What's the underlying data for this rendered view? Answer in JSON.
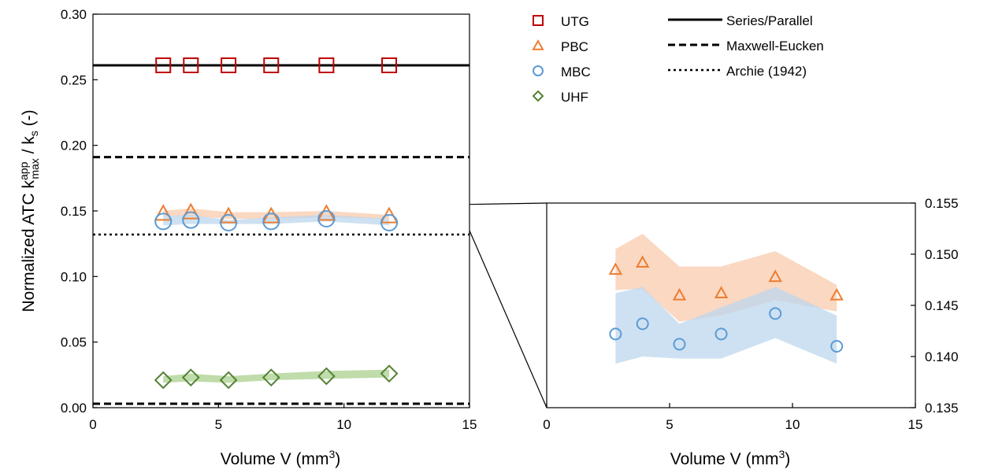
{
  "colors": {
    "UTG": "#c00000",
    "PBC": "#ed7d31",
    "MBC": "#5b9bd5",
    "UHF": "#548235",
    "PBC_band": "#f8cbad",
    "MBC_band": "#bdd7ee",
    "UHF_band": "#a9d08e"
  },
  "chart_data": [
    {
      "type": "scatter",
      "xlabel": "Volume V (mm",
      "xlabel_sup": "3",
      "xlabel_end": ")",
      "ylabel_main": "Normalized ATC k",
      "ylabel_sup": "app",
      "ylabel_sub": "max",
      "ylabel_mid": " / k",
      "ylabel_sub2": "s",
      "ylabel_end": "  (-)",
      "xlim": [
        0,
        15
      ],
      "ylim": [
        0,
        0.3
      ],
      "xticks": [
        "0",
        "5",
        "10",
        "15"
      ],
      "yticks": [
        "0.00",
        "0.05",
        "0.10",
        "0.15",
        "0.20",
        "0.25",
        "0.30"
      ],
      "x": [
        2.8,
        3.9,
        5.4,
        7.1,
        9.3,
        11.8
      ],
      "series": [
        {
          "name": "UTG",
          "marker": "square",
          "values": [
            0.261,
            0.261,
            0.261,
            0.261,
            0.261,
            0.261
          ]
        },
        {
          "name": "PBC",
          "marker": "triangle",
          "values": [
            0.148,
            0.149,
            0.146,
            0.146,
            0.148,
            0.146
          ],
          "band_upper": [
            0.15,
            0.152,
            0.149,
            0.149,
            0.15,
            0.147
          ],
          "band_lower": [
            0.146,
            0.146,
            0.144,
            0.144,
            0.145,
            0.144
          ]
        },
        {
          "name": "MBC",
          "marker": "circle",
          "values": [
            0.142,
            0.143,
            0.141,
            0.142,
            0.144,
            0.141
          ],
          "band_upper": [
            0.146,
            0.147,
            0.143,
            0.145,
            0.147,
            0.144
          ],
          "band_lower": [
            0.139,
            0.14,
            0.14,
            0.14,
            0.142,
            0.139
          ]
        },
        {
          "name": "UHF",
          "marker": "diamond",
          "values": [
            0.021,
            0.023,
            0.021,
            0.023,
            0.024,
            0.026
          ],
          "band_upper": [
            0.024,
            0.026,
            0.024,
            0.026,
            0.028,
            0.029
          ],
          "band_lower": [
            0.019,
            0.02,
            0.019,
            0.021,
            0.022,
            0.023
          ]
        }
      ],
      "reference_lines": [
        {
          "name": "Series/Parallel",
          "style": "solid",
          "values": [
            0.261
          ]
        },
        {
          "name": "Maxwell-Eucken",
          "style": "dashed",
          "values": [
            0.191,
            0.003
          ]
        },
        {
          "name": "Archie (1942)",
          "style": "dotted",
          "values": [
            0.132
          ]
        }
      ],
      "legend_placement": "top-right"
    },
    {
      "type": "scatter",
      "title": "",
      "xlabel": "Volume V (mm",
      "xlabel_sup": "3",
      "xlabel_end": ")",
      "xlim": [
        0,
        15
      ],
      "ylim": [
        0.135,
        0.155
      ],
      "xticks": [
        "0",
        "5",
        "10",
        "15"
      ],
      "yticks": [
        "0.135",
        "0.140",
        "0.145",
        "0.150",
        "0.155"
      ],
      "x": [
        2.8,
        3.9,
        5.4,
        7.1,
        9.3,
        11.8
      ],
      "series": [
        {
          "name": "PBC",
          "marker": "triangle",
          "values": [
            0.1485,
            0.1492,
            0.146,
            0.1462,
            0.1478,
            0.146
          ],
          "band_upper": [
            0.1505,
            0.152,
            0.1488,
            0.1488,
            0.1503,
            0.147
          ],
          "band_lower": [
            0.1465,
            0.1466,
            0.1434,
            0.144,
            0.1455,
            0.1444
          ]
        },
        {
          "name": "MBC",
          "marker": "circle",
          "values": [
            0.1422,
            0.1432,
            0.1412,
            0.1422,
            0.1442,
            0.141
          ],
          "band_upper": [
            0.1462,
            0.1468,
            0.1432,
            0.1448,
            0.1468,
            0.144
          ],
          "band_lower": [
            0.1393,
            0.14,
            0.1398,
            0.1398,
            0.1418,
            0.1393
          ]
        }
      ]
    }
  ]
}
